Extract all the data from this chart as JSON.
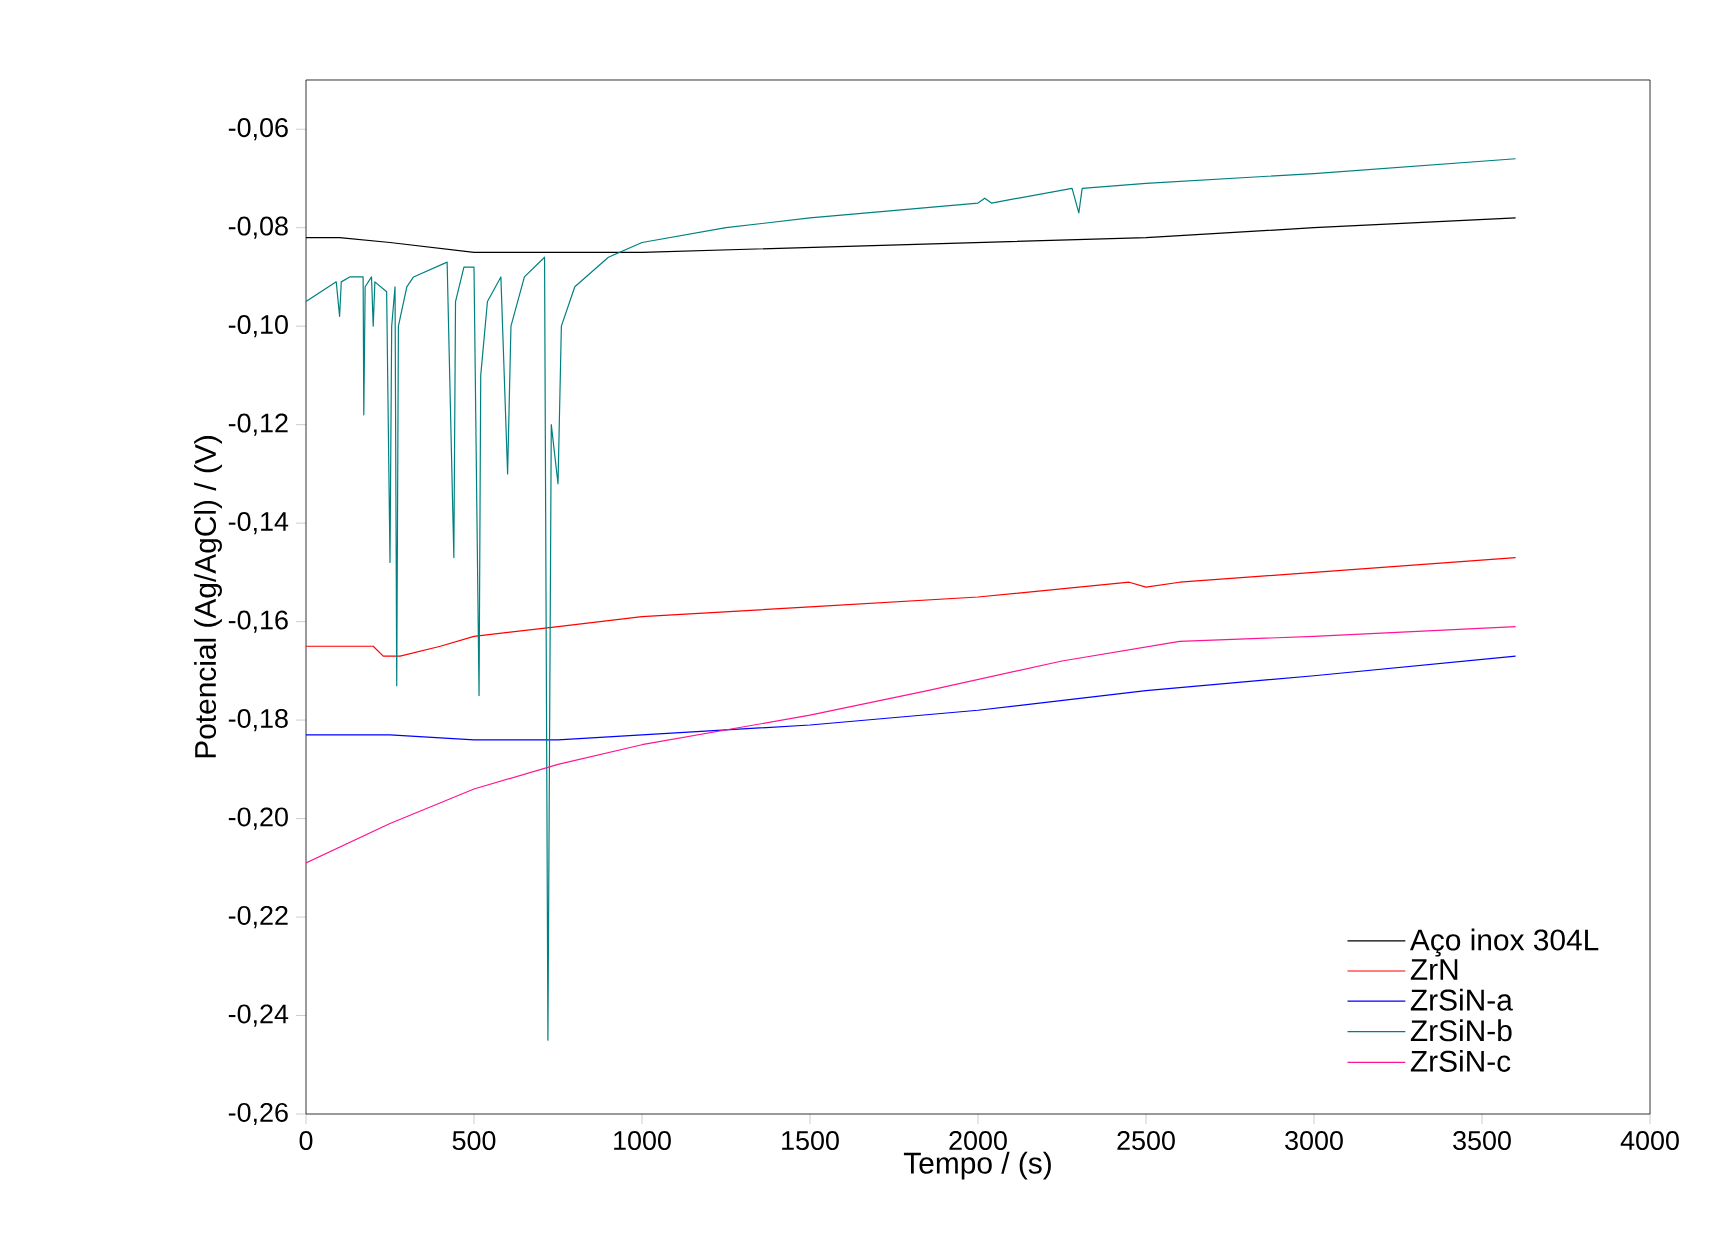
{
  "chart_data": {
    "type": "line",
    "xlabel": "Tempo / (s)",
    "ylabel": "Potencial (Ag/AgCl) / (V)",
    "xlim": [
      0,
      4000
    ],
    "xticks": [
      0,
      500,
      1000,
      1500,
      2000,
      2500,
      3000,
      3500,
      4000
    ],
    "ylim": [
      -0.26,
      -0.05
    ],
    "yticks": [
      {
        "value": -0.26,
        "label": "-0,26"
      },
      {
        "value": -0.24,
        "label": "-0,24"
      },
      {
        "value": -0.22,
        "label": "-0,22"
      },
      {
        "value": -0.2,
        "label": "-0,20"
      },
      {
        "value": -0.18,
        "label": "-0,18"
      },
      {
        "value": -0.16,
        "label": "-0,16"
      },
      {
        "value": -0.14,
        "label": "-0,14"
      },
      {
        "value": -0.12,
        "label": "-0,12"
      },
      {
        "value": -0.1,
        "label": "-0,10"
      },
      {
        "value": -0.08,
        "label": "-0,08"
      },
      {
        "value": -0.06,
        "label": "-0,06"
      }
    ],
    "grid": false,
    "legend": "bottom right",
    "marker": "none",
    "line_style": "solid",
    "series": [
      {
        "name": "Aço inox 304L",
        "color": "#000000",
        "x": [
          0,
          100,
          250,
          500,
          750,
          1000,
          1500,
          2000,
          2500,
          3000,
          3600
        ],
        "values": [
          -0.082,
          -0.082,
          -0.083,
          -0.085,
          -0.085,
          -0.085,
          -0.084,
          -0.083,
          -0.082,
          -0.08,
          -0.078
        ]
      },
      {
        "name": "ZrN",
        "color": "#ff0000",
        "x": [
          0,
          200,
          230,
          280,
          400,
          500,
          750,
          1000,
          1500,
          2000,
          2450,
          2500,
          2600,
          3000,
          3600
        ],
        "values": [
          -0.165,
          -0.165,
          -0.167,
          -0.167,
          -0.165,
          -0.163,
          -0.161,
          -0.159,
          -0.157,
          -0.155,
          -0.152,
          -0.153,
          -0.152,
          -0.15,
          -0.147
        ]
      },
      {
        "name": "ZrSiN-a",
        "color": "#0000ff",
        "x": [
          0,
          250,
          500,
          750,
          1000,
          1500,
          2000,
          2500,
          3000,
          3600
        ],
        "values": [
          -0.183,
          -0.183,
          -0.184,
          -0.184,
          -0.183,
          -0.181,
          -0.178,
          -0.174,
          -0.171,
          -0.167
        ]
      },
      {
        "name": "ZrSiN-b",
        "color": "#008080",
        "x": [
          0,
          90,
          100,
          105,
          130,
          170,
          172,
          176,
          195,
          200,
          205,
          240,
          250,
          255,
          265,
          270,
          275,
          300,
          320,
          420,
          440,
          445,
          470,
          500,
          515,
          520,
          540,
          580,
          600,
          610,
          650,
          710,
          720,
          730,
          750,
          760,
          800,
          900,
          1000,
          1250,
          1500,
          2000,
          2020,
          2040,
          2280,
          2300,
          2310,
          2500,
          3000,
          3600
        ],
        "values": [
          -0.095,
          -0.091,
          -0.098,
          -0.091,
          -0.09,
          -0.09,
          -0.118,
          -0.092,
          -0.09,
          -0.1,
          -0.091,
          -0.093,
          -0.148,
          -0.1,
          -0.092,
          -0.173,
          -0.1,
          -0.092,
          -0.09,
          -0.087,
          -0.147,
          -0.095,
          -0.088,
          -0.088,
          -0.175,
          -0.11,
          -0.095,
          -0.09,
          -0.13,
          -0.1,
          -0.09,
          -0.086,
          -0.245,
          -0.12,
          -0.132,
          -0.1,
          -0.092,
          -0.086,
          -0.083,
          -0.08,
          -0.078,
          -0.075,
          -0.074,
          -0.075,
          -0.072,
          -0.077,
          -0.072,
          -0.071,
          -0.069,
          -0.066
        ]
      },
      {
        "name": "ZrSiN-c",
        "color": "#ff1493",
        "x": [
          0,
          250,
          500,
          750,
          1000,
          1250,
          1500,
          1850,
          2250,
          2600,
          3000,
          3600
        ],
        "values": [
          -0.209,
          -0.201,
          -0.194,
          -0.189,
          -0.185,
          -0.182,
          -0.179,
          -0.174,
          -0.168,
          -0.164,
          -0.163,
          -0.161
        ]
      }
    ]
  }
}
